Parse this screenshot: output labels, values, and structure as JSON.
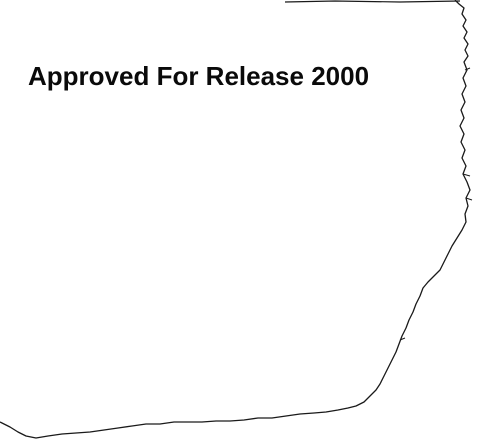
{
  "document": {
    "release_banner": "Approved For Release 2000"
  },
  "colors": {
    "background": "#ffffff",
    "ink": "#0a0a0a",
    "edge": "#1a1a1a"
  }
}
